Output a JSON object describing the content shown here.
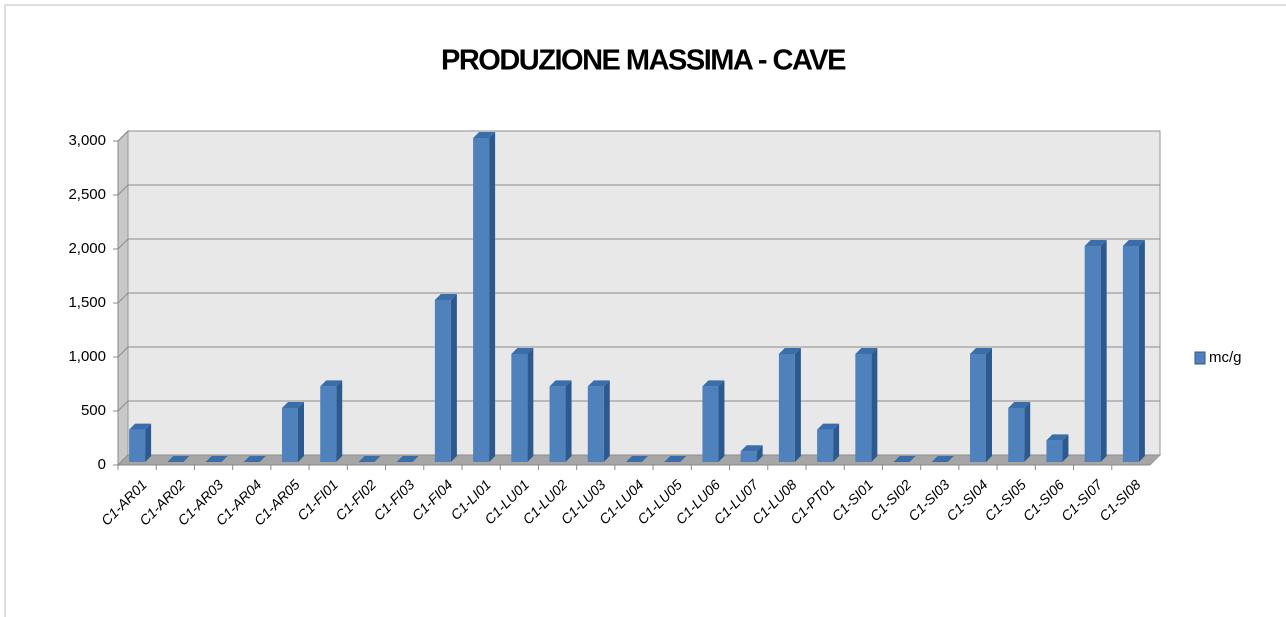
{
  "chart_data": {
    "type": "bar3d",
    "title": "PRODUZIONE MASSIMA - CAVE",
    "categories": [
      "C1-AR01",
      "C1-AR02",
      "C1-AR03",
      "C1-AR04",
      "C1-AR05",
      "C1-FI01",
      "C1-FI02",
      "C1-FI03",
      "C1-FI04",
      "C1-LI01",
      "C1-LU01",
      "C1-LU02",
      "C1-LU03",
      "C1-LU04",
      "C1-LU05",
      "C1-LU06",
      "C1-LU07",
      "C1-LU08",
      "C1-PT01",
      "C1-SI01",
      "C1-SI02",
      "C1-SI03",
      "C1-SI04",
      "C1-SI05",
      "C1-SI06",
      "C1-SI07",
      "C1-SI08"
    ],
    "series": [
      {
        "name": "mc/g",
        "color": "#4f81bd",
        "values": [
          300,
          0,
          0,
          0,
          500,
          700,
          0,
          0,
          1500,
          3000,
          1000,
          700,
          700,
          0,
          0,
          700,
          100,
          1000,
          300,
          1000,
          0,
          0,
          1000,
          500,
          200,
          2000,
          2000
        ]
      }
    ],
    "ylim": [
      0,
      3000
    ],
    "yticks": [
      0,
      500,
      {
        "value": 1000,
        "label": "1,000"
      },
      {
        "value": 1500,
        "label": "1,500"
      },
      {
        "value": 2000,
        "label": "2,000"
      },
      {
        "value": 2500,
        "label": "2,500"
      },
      {
        "value": 3000,
        "label": "3,000"
      }
    ],
    "grid": true,
    "legend": "right"
  }
}
